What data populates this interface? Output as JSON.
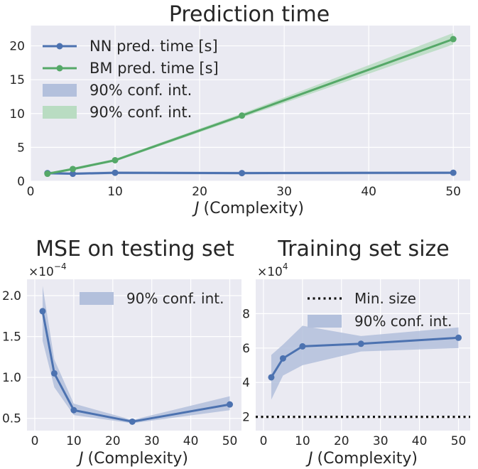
{
  "colors": {
    "background": "#eaeaf2",
    "grid": "#ffffff",
    "text": "#262626",
    "nn_blue": "#4c72b0",
    "bm_green": "#55a868",
    "blue_band": "#b3c0dc",
    "green_band": "#b9dcc2",
    "min_size_line": "#111111"
  },
  "chart_data": [
    {
      "id": "pred",
      "type": "line",
      "title": "Prediction time",
      "xlabel": "(Complexity)",
      "xlabel_symbol": "J",
      "ylabel": "",
      "xlim": [
        0,
        52
      ],
      "ylim": [
        0,
        23
      ],
      "xticks": [
        0,
        10,
        20,
        30,
        40,
        50
      ],
      "yticks": [
        0,
        5,
        10,
        15,
        20
      ],
      "ytick_scale": 1,
      "grid": true,
      "legend_position": "top-left",
      "series": [
        {
          "name": "NN pred. time [s]",
          "color_key": "nn_blue",
          "x": [
            2,
            5,
            10,
            25,
            50
          ],
          "y": [
            1.2,
            1.1,
            1.25,
            1.2,
            1.25
          ],
          "band_lower": [
            0.95,
            0.95,
            1.05,
            1.0,
            1.05
          ],
          "band_upper": [
            1.45,
            1.3,
            1.45,
            1.4,
            1.45
          ]
        },
        {
          "name": "BM pred. time [s]",
          "color_key": "bm_green",
          "x": [
            2,
            5,
            10,
            25,
            50
          ],
          "y": [
            1.1,
            1.8,
            3.1,
            9.7,
            21.0
          ],
          "band_lower": [
            0.95,
            1.6,
            2.9,
            9.4,
            20.2
          ],
          "band_upper": [
            1.25,
            2.0,
            3.3,
            10.0,
            21.9
          ]
        }
      ],
      "legend": [
        {
          "label": "NN pred. time [s]",
          "kind": "line",
          "color_key": "nn_blue"
        },
        {
          "label": "BM pred. time [s]",
          "kind": "line",
          "color_key": "bm_green"
        },
        {
          "label": "90% conf. int.",
          "kind": "patch",
          "color_key": "blue_band"
        },
        {
          "label": "90% conf. int.",
          "kind": "patch",
          "color_key": "green_band"
        }
      ]
    },
    {
      "id": "mse",
      "type": "line",
      "title": "MSE on testing set",
      "xlabel": "(Complexity)",
      "xlabel_symbol": "J",
      "ylabel": "",
      "scale_label": "×10",
      "scale_exp": "−4",
      "xlim": [
        -2,
        53
      ],
      "ylim": [
        0.35,
        2.2
      ],
      "xticks": [
        0,
        10,
        20,
        30,
        40,
        50
      ],
      "yticks": [
        0.5,
        1.0,
        1.5,
        2.0
      ],
      "ytick_labels": [
        "0.5",
        "1.0",
        "1.5",
        "2.0"
      ],
      "grid": true,
      "legend_position": "top-right",
      "series": [
        {
          "name": "",
          "color_key": "nn_blue",
          "x": [
            2,
            5,
            10,
            25,
            50
          ],
          "y": [
            1.81,
            1.05,
            0.6,
            0.46,
            0.67
          ],
          "band_lower": [
            1.45,
            0.88,
            0.54,
            0.44,
            0.6
          ],
          "band_upper": [
            2.12,
            1.22,
            0.68,
            0.48,
            0.77
          ]
        }
      ],
      "legend": [
        {
          "label": "90% conf. int.",
          "kind": "patch",
          "color_key": "blue_band"
        }
      ]
    },
    {
      "id": "train",
      "type": "line",
      "title": "Training set size",
      "xlabel": "(Complexity)",
      "xlabel_symbol": "J",
      "ylabel": "",
      "scale_label": "×10",
      "scale_exp": "4",
      "xlim": [
        -2,
        53
      ],
      "ylim": [
        1.2,
        10.0
      ],
      "xticks": [
        0,
        10,
        20,
        30,
        40,
        50
      ],
      "yticks": [
        2,
        4,
        6,
        8
      ],
      "ytick_labels": [
        "2",
        "4",
        "6",
        "8"
      ],
      "grid": true,
      "legend_position": "top-right",
      "min_size": 2.0,
      "series": [
        {
          "name": "",
          "color_key": "nn_blue",
          "x": [
            2,
            5,
            10,
            25,
            50
          ],
          "y": [
            4.3,
            5.4,
            6.1,
            6.25,
            6.6
          ],
          "band_lower": [
            3.0,
            4.4,
            5.0,
            5.8,
            6.0
          ],
          "band_upper": [
            5.6,
            6.2,
            7.3,
            6.7,
            7.2
          ]
        }
      ],
      "legend": [
        {
          "label": "Min. size",
          "kind": "dotted",
          "color_key": "min_size_line"
        },
        {
          "label": "90% conf. int.",
          "kind": "patch",
          "color_key": "blue_band"
        }
      ]
    }
  ]
}
